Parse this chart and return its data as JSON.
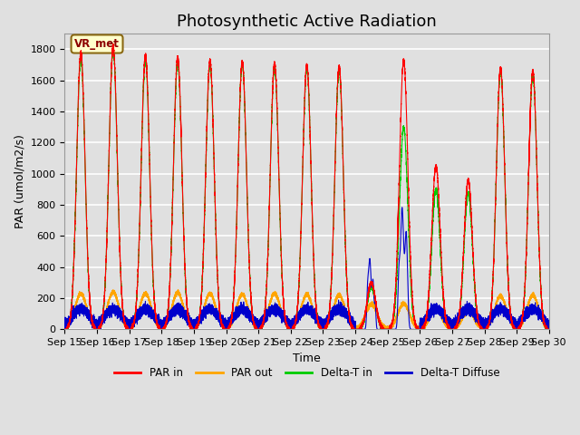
{
  "title": "Photosynthetic Active Radiation",
  "xlabel": "Time",
  "ylabel": "PAR (umol/m2/s)",
  "ylim": [
    0,
    1900
  ],
  "yticks": [
    0,
    200,
    400,
    600,
    800,
    1000,
    1200,
    1400,
    1600,
    1800
  ],
  "annotation_text": "VR_met",
  "legend_labels": [
    "PAR in",
    "PAR out",
    "Delta-T in",
    "Delta-T Diffuse"
  ],
  "colors": {
    "par_in": "#ff0000",
    "par_out": "#ffa500",
    "delta_t_in": "#00cc00",
    "delta_t_diffuse": "#0000cc"
  },
  "background_color": "#e0e0e0",
  "axes_background": "#e0e0e0",
  "grid_color": "#ffffff",
  "num_days": 15,
  "start_day": 15,
  "peaks_par_in": [
    1780,
    1820,
    1760,
    1750,
    1730,
    1720,
    1710,
    1700,
    1690,
    300,
    1730,
    1050,
    960,
    1680,
    1660
  ],
  "peaks_par_out": [
    230,
    240,
    230,
    235,
    230,
    225,
    230,
    225,
    220,
    160,
    165,
    130,
    120,
    215,
    220
  ],
  "peaks_delta_t_in": [
    1750,
    1800,
    1730,
    1720,
    1700,
    1710,
    1690,
    1680,
    1670,
    270,
    1300,
    900,
    880,
    1660,
    1640
  ],
  "title_fontsize": 13,
  "label_fontsize": 9,
  "tick_fontsize": 8
}
